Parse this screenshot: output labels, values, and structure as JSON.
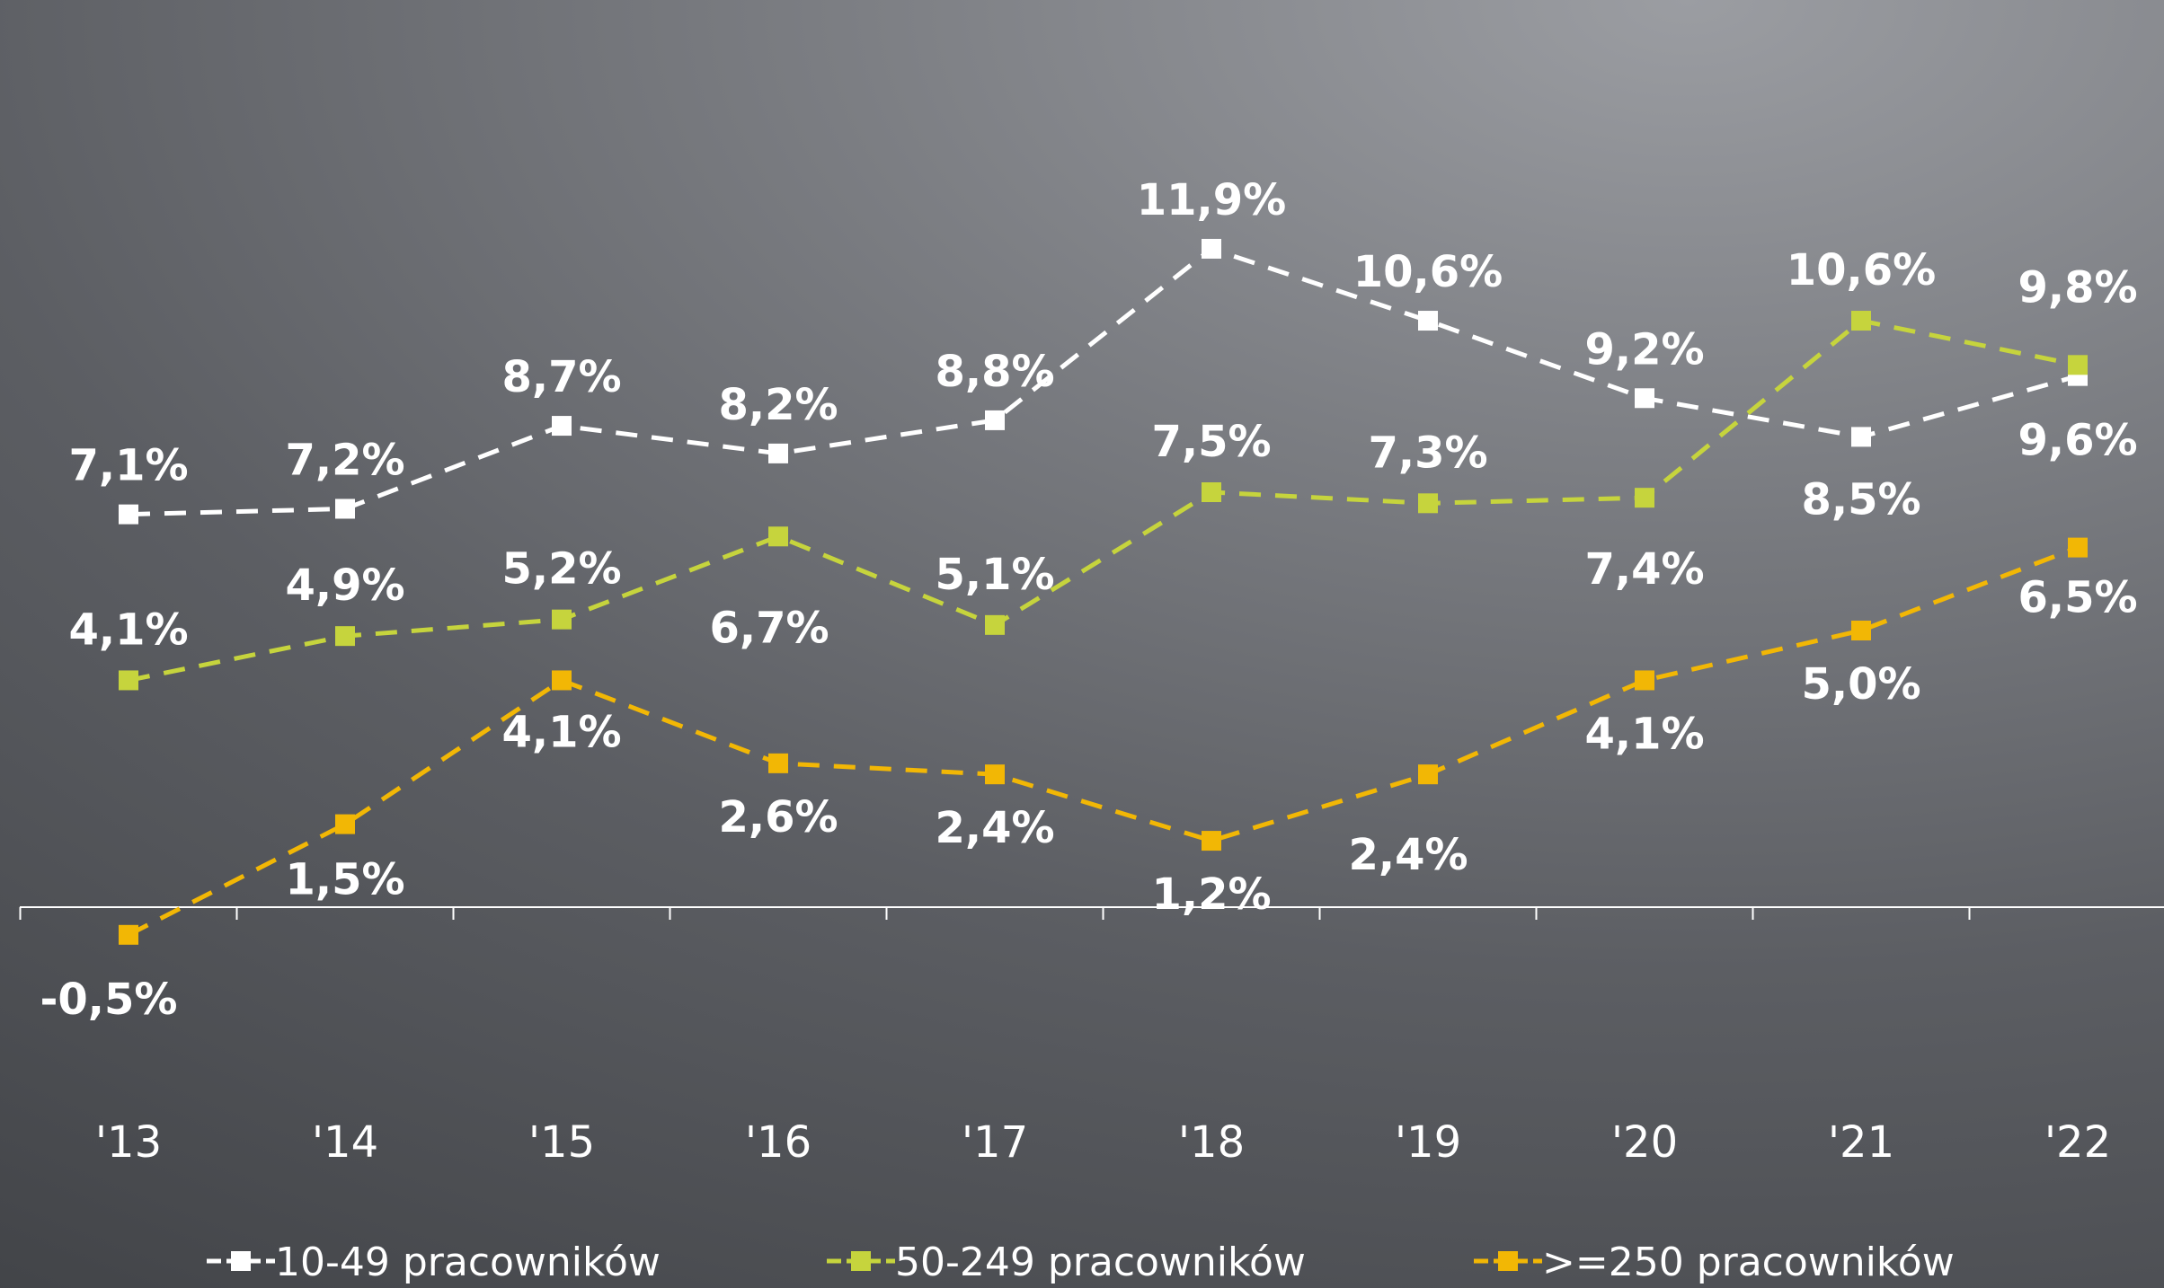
{
  "chart_data": {
    "type": "line",
    "title": "",
    "xlabel": "",
    "ylabel": "",
    "categories": [
      "'13",
      "'14",
      "'15",
      "'16",
      "'17",
      "'18",
      "'19",
      "'20",
      "'21",
      "'22"
    ],
    "ylim": [
      -2.5,
      12.5
    ],
    "grid": false,
    "legend_position": "bottom",
    "series": [
      {
        "name": "10-49 pracowników",
        "color": "#ffffff",
        "values": [
          7.1,
          7.2,
          8.7,
          8.2,
          8.8,
          11.9,
          10.6,
          9.2,
          8.5,
          9.6
        ],
        "labels": [
          "7,1%",
          "7,2%",
          "8,7%",
          "8,2%",
          "8,8%",
          "11,9%",
          "10,6%",
          "9,2%",
          "8,5%",
          "9,6%"
        ]
      },
      {
        "name": "50-249 pracowników",
        "color": "#c6d43d",
        "values": [
          4.1,
          4.9,
          5.2,
          6.7,
          5.1,
          7.5,
          7.3,
          7.4,
          10.6,
          9.8
        ],
        "labels": [
          "4,1%",
          "4,9%",
          "5,2%",
          "6,7%",
          "5,1%",
          "7,5%",
          "7,3%",
          "7,4%",
          "10,6%",
          "9,8%"
        ]
      },
      {
        "name": ">=250 pracowników",
        "color": "#f2b705",
        "values": [
          -0.5,
          1.5,
          4.1,
          2.6,
          2.4,
          1.2,
          2.4,
          4.1,
          5.0,
          6.5
        ],
        "labels": [
          "-0,5%",
          "1,5%",
          "4,1%",
          "2,6%",
          "2,4%",
          "1,2%",
          "2,4%",
          "4,1%",
          "5,0%",
          "6,5%"
        ]
      }
    ]
  }
}
